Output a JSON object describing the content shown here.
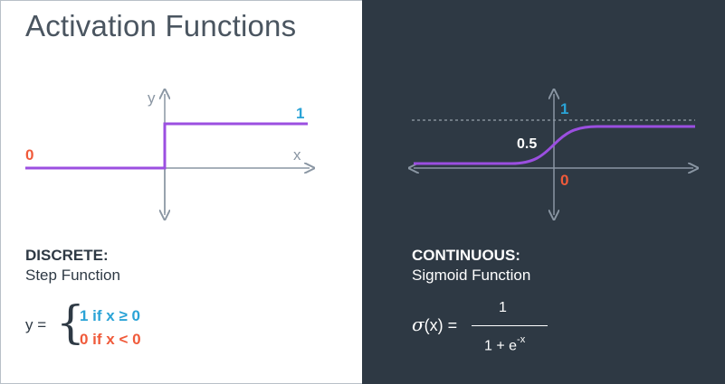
{
  "title": "Activation Functions",
  "step": {
    "y_label": "y",
    "x_label": "x",
    "one_label": "1",
    "zero_label": "0",
    "kind_title": "DISCRETE:",
    "kind_name": "Step Function",
    "formula_lhs": "y =",
    "case_ge": "1 if x  ≥ 0",
    "case_lt": "0 if x < 0"
  },
  "sigmoid": {
    "one_label": "1",
    "half_label": "0.5",
    "zero_label": "0",
    "kind_title": "CONTINUOUS:",
    "kind_name": "Sigmoid Function",
    "formula_lhs_symbol": "σ",
    "formula_lhs_rest": "(x) =",
    "numerator": "1",
    "denominator_base": "1 + e",
    "denominator_exp": "-x"
  },
  "colors": {
    "curve": "#9b4fe0",
    "axis": "#8a96a3",
    "blue": "#2aa3d6",
    "orange": "#f05a3a",
    "dark_bg": "#2e3944"
  }
}
